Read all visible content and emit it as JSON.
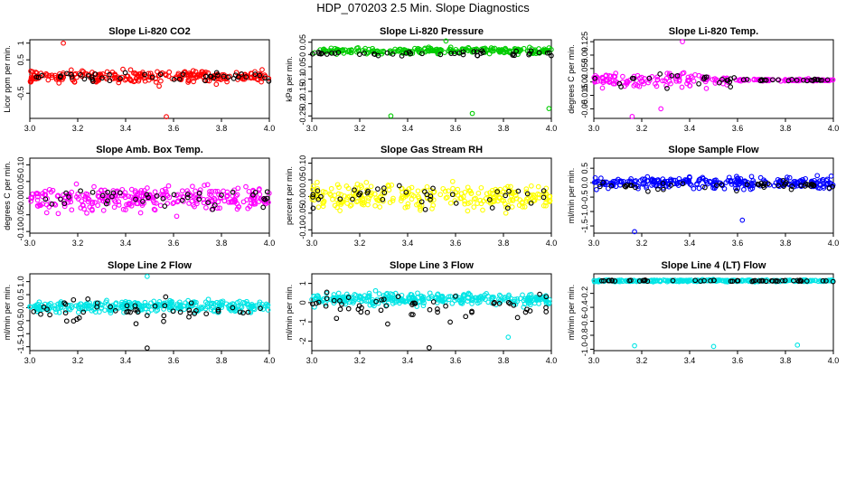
{
  "figure": {
    "title": "HDP_070203  2.5 Min. Slope Diagnostics"
  },
  "chart_data": [
    {
      "type": "scatter",
      "title": "Slope Li-820 CO2",
      "ylabel": "Licor ppm per min.",
      "xlim": [
        3.0,
        4.0
      ],
      "ylim": [
        -1.25,
        1.1
      ],
      "xticks": [
        "3.0",
        "3.2",
        "3.4",
        "3.6",
        "3.8",
        "4.0"
      ],
      "yticks": [
        "-0.5",
        "0.5",
        "1"
      ],
      "ytick_values": [
        -0.5,
        0.5,
        1.0
      ],
      "series": [
        {
          "name": "main",
          "color": "#ff0000",
          "center": 0.0,
          "spread": 0.22,
          "n": 260
        },
        {
          "name": "black",
          "color": "#000000",
          "center": 0.0,
          "spread": 0.18,
          "n": 45
        }
      ],
      "outliers": [
        {
          "x": 3.14,
          "y": 1.0,
          "color": "#ff0000"
        },
        {
          "x": 3.57,
          "y": -1.2,
          "color": "#ff0000"
        }
      ]
    },
    {
      "type": "scatter",
      "title": "Slope Li-820 Pressure",
      "ylabel": "kPa per min.",
      "xlim": [
        3.0,
        4.0
      ],
      "ylim": [
        -0.26,
        0.06
      ],
      "xticks": [
        "3.0",
        "3.2",
        "3.4",
        "3.6",
        "3.8",
        "4.0"
      ],
      "yticks": [
        "-0.25",
        "-0.2",
        "-0.15",
        "-0.1",
        "-0.05",
        "0",
        "0.05"
      ],
      "ytick_values": [
        -0.25,
        -0.2,
        -0.15,
        -0.1,
        -0.05,
        0.0,
        0.05
      ],
      "series": [
        {
          "name": "main",
          "color": "#00cc00",
          "center": 0.015,
          "spread": 0.015,
          "n": 240
        },
        {
          "name": "black",
          "color": "#000000",
          "center": 0.005,
          "spread": 0.01,
          "n": 45
        }
      ],
      "outliers": [
        {
          "x": 3.33,
          "y": -0.25,
          "color": "#00cc00"
        },
        {
          "x": 3.67,
          "y": -0.24,
          "color": "#00cc00"
        },
        {
          "x": 3.99,
          "y": -0.22,
          "color": "#00cc00"
        },
        {
          "x": 3.56,
          "y": 0.055,
          "color": "#00cc00"
        }
      ]
    },
    {
      "type": "scatter",
      "title": "Slope Li-820 Temp.",
      "ylabel": "degrees C per min.",
      "xlim": [
        3.0,
        4.0
      ],
      "ylim": [
        -0.075,
        0.13
      ],
      "xticks": [
        "3.0",
        "3.2",
        "3.4",
        "3.6",
        "3.8",
        "4.0"
      ],
      "yticks": [
        "-0.05",
        "-0.015",
        "0.02",
        "0.055",
        "0.09",
        "0.125"
      ],
      "ytick_values": [
        -0.05,
        -0.015,
        0.02,
        0.055,
        0.09,
        0.125
      ],
      "series": [
        {
          "name": "main",
          "color": "#ff00ff",
          "center": 0.025,
          "spread": 0.022,
          "n": 200,
          "narrow_after": 3.6
        },
        {
          "name": "black",
          "color": "#000000",
          "center": 0.025,
          "spread": 0.02,
          "n": 45,
          "narrow_after": 3.6
        }
      ],
      "outliers": [
        {
          "x": 3.16,
          "y": -0.07,
          "color": "#ff00ff"
        },
        {
          "x": 3.28,
          "y": -0.05,
          "color": "#ff00ff"
        },
        {
          "x": 3.37,
          "y": 0.125,
          "color": "#ff00ff"
        }
      ]
    },
    {
      "type": "scatter",
      "title": "Slope Amb. Box Temp.",
      "ylabel": "degrees C per min.",
      "xlim": [
        3.0,
        4.0
      ],
      "ylim": [
        -0.105,
        0.12
      ],
      "xticks": [
        "3.0",
        "3.2",
        "3.4",
        "3.6",
        "3.8",
        "4.0"
      ],
      "yticks": [
        "-0.10",
        "-0.05",
        "0.00",
        "0.05",
        "0.10"
      ],
      "ytick_values": [
        -0.1,
        -0.05,
        0.0,
        0.05,
        0.1
      ],
      "series": [
        {
          "name": "main",
          "color": "#ff00ff",
          "center": 0.0,
          "spread": 0.04,
          "n": 300
        },
        {
          "name": "black",
          "color": "#000000",
          "center": 0.0,
          "spread": 0.035,
          "n": 40
        }
      ],
      "outliers": []
    },
    {
      "type": "scatter",
      "title": "Slope Gas Stream RH",
      "ylabel": "percent per min.",
      "xlim": [
        3.0,
        4.0
      ],
      "ylim": [
        -0.11,
        0.115
      ],
      "xticks": [
        "3.0",
        "3.2",
        "3.4",
        "3.6",
        "3.8",
        "4.0"
      ],
      "yticks": [
        "-0.10",
        "-0.05",
        "0.00",
        "0.05",
        "0.10"
      ],
      "ytick_values": [
        -0.1,
        -0.05,
        0.0,
        0.05,
        0.1
      ],
      "series": [
        {
          "name": "main",
          "color": "#ffff00",
          "center": 0.0,
          "spread": 0.045,
          "n": 280
        },
        {
          "name": "black",
          "color": "#000000",
          "center": 0.0,
          "spread": 0.04,
          "n": 40
        }
      ],
      "outliers": []
    },
    {
      "type": "scatter",
      "title": "Slope Sample Flow",
      "ylabel": "ml/min per min.",
      "xlim": [
        3.0,
        4.0
      ],
      "ylim": [
        -1.75,
        0.85
      ],
      "xticks": [
        "3.0",
        "3.2",
        "3.4",
        "3.6",
        "3.8",
        "4.0"
      ],
      "yticks": [
        "-1.5",
        "-1.0",
        "-0.5",
        "0.0",
        "0.5"
      ],
      "ytick_values": [
        -1.5,
        -1.0,
        -0.5,
        0.0,
        0.5
      ],
      "series": [
        {
          "name": "main",
          "color": "#0000ff",
          "center": 0.0,
          "spread": 0.22,
          "n": 280
        },
        {
          "name": "black",
          "color": "#000000",
          "center": -0.1,
          "spread": 0.2,
          "n": 45
        }
      ],
      "outliers": [
        {
          "x": 3.17,
          "y": -1.7,
          "color": "#0000ff"
        },
        {
          "x": 3.62,
          "y": -1.3,
          "color": "#0000ff"
        }
      ]
    },
    {
      "type": "scatter",
      "title": "Slope Line 2 Flow",
      "ylabel": "ml/min per min.",
      "xlim": [
        3.0,
        4.0
      ],
      "ylim": [
        -1.65,
        1.3
      ],
      "xticks": [
        "3.0",
        "3.2",
        "3.4",
        "3.6",
        "3.8",
        "4.0"
      ],
      "yticks": [
        "-1.5",
        "-1.0",
        "-0.5",
        "0.0",
        "0.5",
        "1.0"
      ],
      "ytick_values": [
        -1.5,
        -1.0,
        -0.5,
        0.0,
        0.5,
        1.0
      ],
      "series": [
        {
          "name": "main",
          "color": "#00e5e5",
          "center": 0.05,
          "spread": 0.25,
          "n": 300
        },
        {
          "name": "black",
          "color": "#000000",
          "center": -0.1,
          "spread": 0.6,
          "n": 50
        }
      ],
      "outliers": [
        {
          "x": 3.49,
          "y": 1.2,
          "color": "#00e5e5"
        },
        {
          "x": 3.49,
          "y": -1.55,
          "color": "#000000"
        }
      ]
    },
    {
      "type": "scatter",
      "title": "Slope Line 3 Flow",
      "ylabel": "ml/min per min.",
      "xlim": [
        3.0,
        4.0
      ],
      "ylim": [
        -2.5,
        1.5
      ],
      "xticks": [
        "3.0",
        "3.2",
        "3.4",
        "3.6",
        "3.8",
        "4.0"
      ],
      "yticks": [
        "-2",
        "-1",
        "0",
        "1"
      ],
      "ytick_values": [
        -2.0,
        -1.0,
        0.0,
        1.0
      ],
      "series": [
        {
          "name": "main",
          "color": "#00e5e5",
          "center": 0.2,
          "spread": 0.35,
          "n": 320
        },
        {
          "name": "black",
          "color": "#000000",
          "center": -0.2,
          "spread": 0.8,
          "n": 55
        }
      ],
      "outliers": [
        {
          "x": 3.49,
          "y": -2.35,
          "color": "#000000"
        },
        {
          "x": 3.82,
          "y": -1.8,
          "color": "#00e5e5"
        }
      ]
    },
    {
      "type": "scatter",
      "title": "Slope Line 4 (LT) Flow",
      "ylabel": "ml/min per min.",
      "xlim": [
        3.0,
        4.0
      ],
      "ylim": [
        -1.02,
        0.08
      ],
      "xticks": [
        "3.0",
        "3.2",
        "3.4",
        "3.6",
        "3.8",
        "4.0"
      ],
      "yticks": [
        "-1.0",
        "-0.8",
        "-0.6",
        "-0.4",
        "-0.2"
      ],
      "ytick_values": [
        -1.0,
        -0.8,
        -0.6,
        -0.4,
        -0.2
      ],
      "series": [
        {
          "name": "main",
          "color": "#00e5e5",
          "center": -0.02,
          "spread": 0.015,
          "n": 300
        },
        {
          "name": "black",
          "color": "#000000",
          "center": -0.02,
          "spread": 0.012,
          "n": 50
        }
      ],
      "outliers": [
        {
          "x": 3.17,
          "y": -0.95,
          "color": "#00e5e5"
        },
        {
          "x": 3.5,
          "y": -0.96,
          "color": "#00e5e5"
        },
        {
          "x": 3.85,
          "y": -0.94,
          "color": "#00e5e5"
        }
      ]
    }
  ]
}
